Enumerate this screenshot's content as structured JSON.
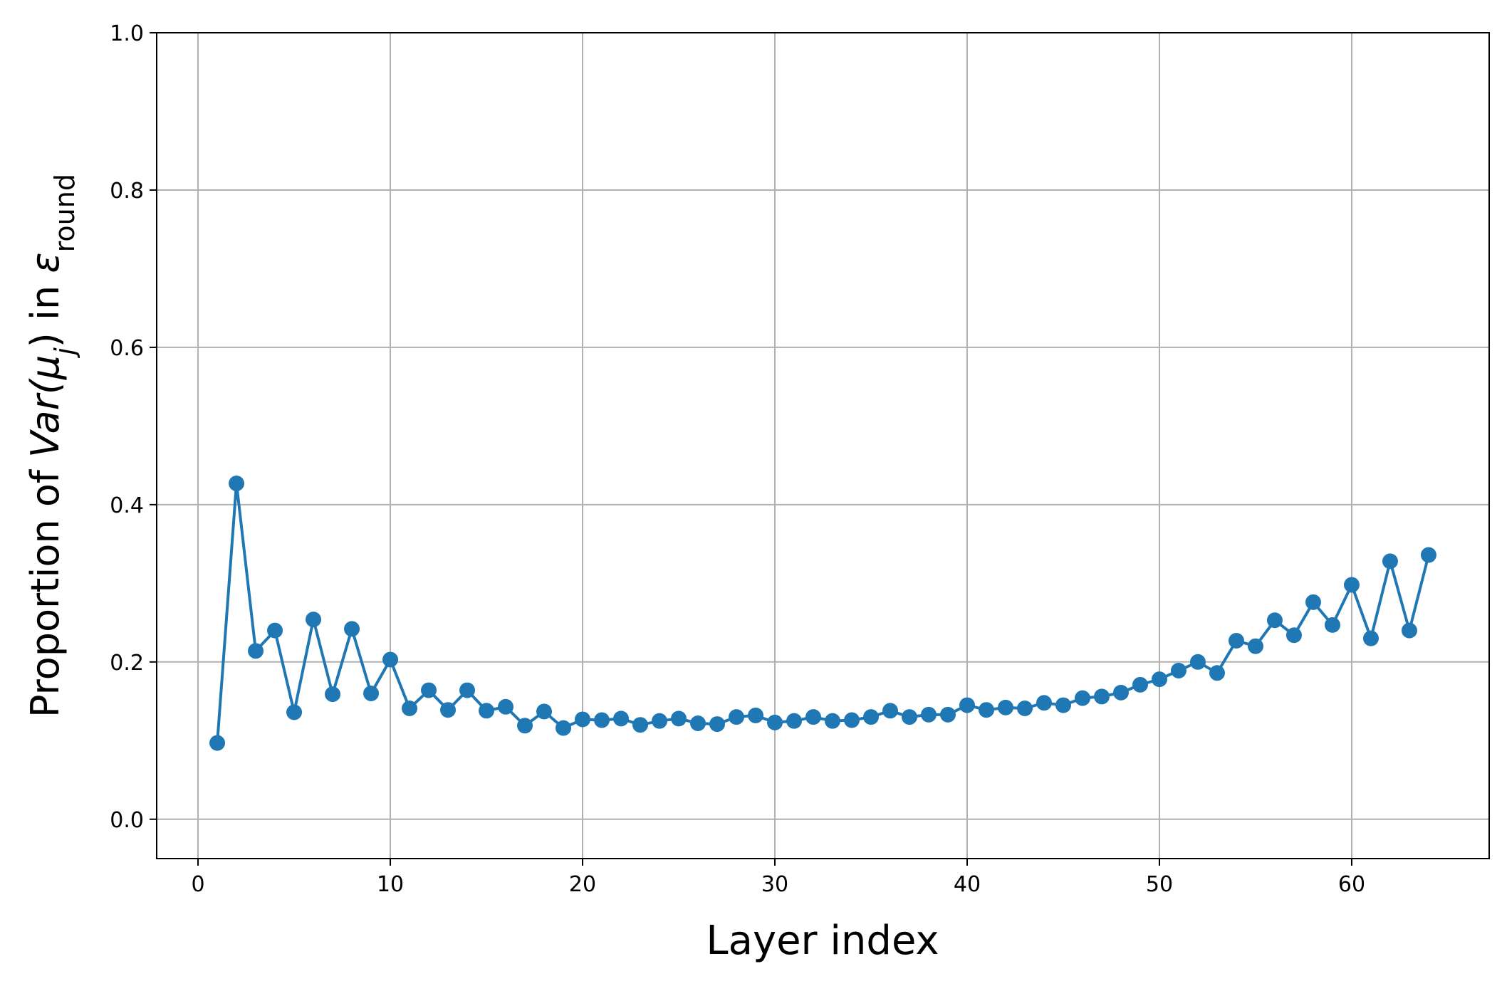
{
  "chart_data": {
    "type": "line",
    "xlabel": "Layer index",
    "ylabel": [
      "Proportion of ",
      "Var(μ",
      "j",
      ") in ",
      "ε",
      "round"
    ],
    "x": [
      1,
      2,
      3,
      4,
      5,
      6,
      7,
      8,
      9,
      10,
      11,
      12,
      13,
      14,
      15,
      16,
      17,
      18,
      19,
      20,
      21,
      22,
      23,
      24,
      25,
      26,
      27,
      28,
      29,
      30,
      31,
      32,
      33,
      34,
      35,
      36,
      37,
      38,
      39,
      40,
      41,
      42,
      43,
      44,
      45,
      46,
      47,
      48,
      49,
      50,
      51,
      52,
      53,
      54,
      55,
      56,
      57,
      58,
      59,
      60,
      61,
      62,
      63,
      64
    ],
    "series": [
      {
        "color": "#1f77b4",
        "values": [
          0.097,
          0.427,
          0.214,
          0.24,
          0.136,
          0.254,
          0.159,
          0.242,
          0.16,
          0.203,
          0.141,
          0.164,
          0.139,
          0.164,
          0.138,
          0.143,
          0.119,
          0.137,
          0.116,
          0.127,
          0.126,
          0.128,
          0.12,
          0.125,
          0.128,
          0.122,
          0.121,
          0.13,
          0.132,
          0.123,
          0.125,
          0.13,
          0.125,
          0.126,
          0.13,
          0.138,
          0.13,
          0.133,
          0.133,
          0.145,
          0.139,
          0.142,
          0.141,
          0.148,
          0.145,
          0.154,
          0.156,
          0.161,
          0.171,
          0.178,
          0.189,
          0.2,
          0.186,
          0.227,
          0.22,
          0.253,
          0.234,
          0.276,
          0.247,
          0.298,
          0.23,
          0.328,
          0.24,
          0.336
        ]
      }
    ],
    "xlim": [
      -2.15,
      67.15
    ],
    "ylim": [
      -0.05,
      1.0
    ],
    "xticks": [
      0,
      10,
      20,
      30,
      40,
      50,
      60
    ],
    "yticks": [
      {
        "value": 0,
        "label": "0.0"
      },
      0.2,
      0.4,
      0.6,
      0.8,
      {
        "value": 1,
        "label": "1.0"
      }
    ],
    "grid": true
  }
}
